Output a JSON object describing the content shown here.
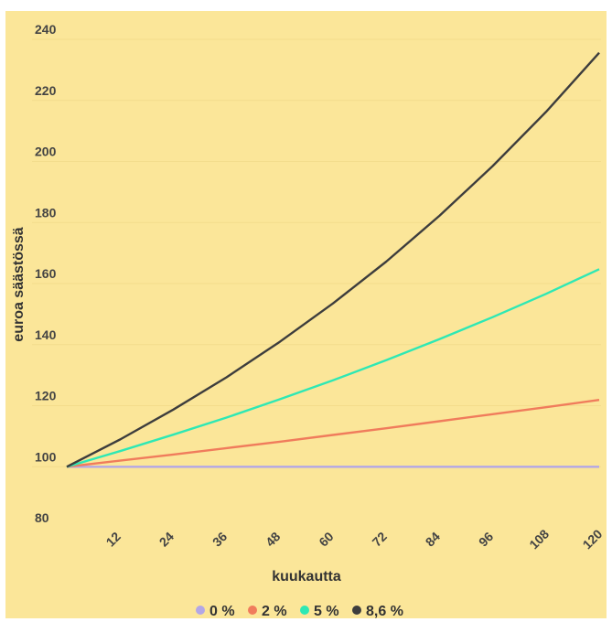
{
  "chart_data": {
    "type": "line",
    "title": "",
    "xlabel": "kuukautta",
    "ylabel": "euroa säästössä",
    "xlim": [
      0,
      120
    ],
    "ylim": [
      80,
      240
    ],
    "x_ticks": [
      12,
      24,
      36,
      48,
      60,
      72,
      84,
      96,
      108,
      120
    ],
    "y_ticks": [
      80,
      100,
      120,
      140,
      160,
      180,
      200,
      220,
      240
    ],
    "grid": true,
    "legend_position": "bottom",
    "x": [
      0,
      12,
      24,
      36,
      48,
      60,
      72,
      84,
      96,
      108,
      120
    ],
    "series": [
      {
        "name": "0 %",
        "color": "#b3a7e6",
        "values": [
          100,
          100,
          100,
          100,
          100,
          100,
          100,
          100,
          100,
          100,
          100
        ]
      },
      {
        "name": "2 %",
        "color": "#f07c5c",
        "values": [
          100,
          102.0,
          104.0,
          106.1,
          108.2,
          110.4,
          112.6,
          114.9,
          117.2,
          119.5,
          121.9
        ]
      },
      {
        "name": "5 %",
        "color": "#2ee8b4",
        "values": [
          100,
          105.1,
          110.5,
          116.1,
          122.1,
          128.3,
          134.9,
          141.8,
          149.0,
          156.6,
          164.7
        ]
      },
      {
        "name": "8,6 %",
        "color": "#3d3d3d",
        "values": [
          100,
          108.9,
          118.7,
          129.3,
          140.9,
          153.5,
          167.2,
          182.2,
          198.5,
          216.2,
          235.6
        ]
      }
    ]
  }
}
